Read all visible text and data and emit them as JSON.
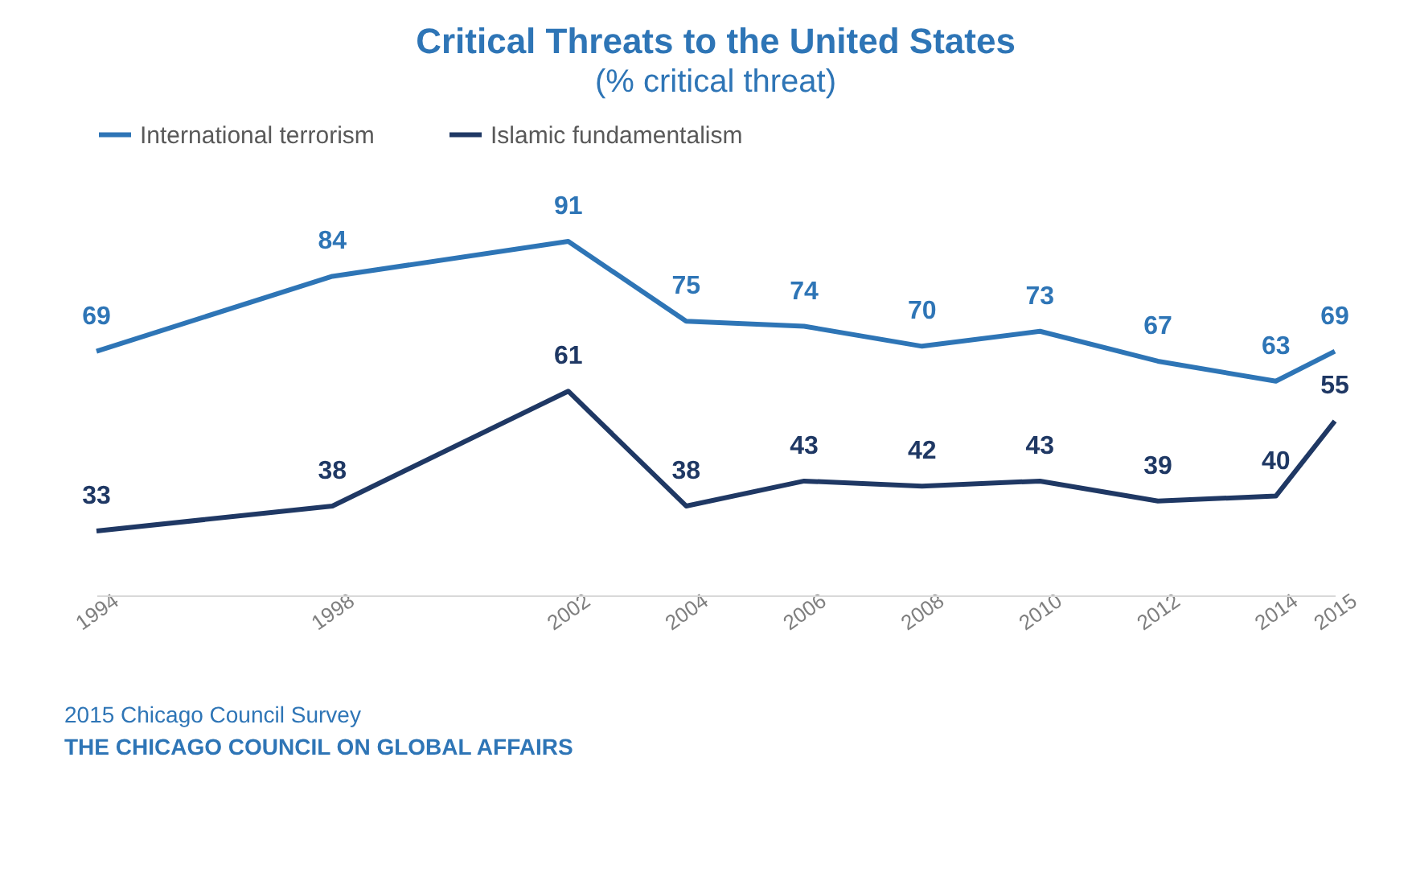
{
  "chart_data": {
    "type": "line",
    "title": "Critical Threats to the United States",
    "subtitle": "(% critical threat)",
    "x": [
      1994,
      1998,
      2002,
      2004,
      2006,
      2008,
      2010,
      2012,
      2014,
      2015
    ],
    "xlim": [
      1994,
      2015
    ],
    "xticks": [
      1994,
      1998,
      2002,
      2004,
      2006,
      2008,
      2010,
      2012,
      2014,
      2015
    ],
    "series": [
      {
        "name": "International terrorism",
        "color": "#2e75b6",
        "values": [
          69,
          84,
          91,
          75,
          74,
          70,
          73,
          67,
          63,
          69
        ]
      },
      {
        "name": "Islamic fundamentalism",
        "color": "#1f3864",
        "values": [
          33,
          38,
          61,
          38,
          43,
          42,
          43,
          39,
          40,
          55
        ]
      }
    ],
    "data_labels": true,
    "grid": false,
    "legend": "top",
    "marker": "none",
    "line_style": "solid",
    "tick_labels": "x",
    "annotations": [
      "2015 Chicago Council Survey",
      "THE CHICAGO COUNCIL ON GLOBAL AFFAIRS"
    ]
  }
}
